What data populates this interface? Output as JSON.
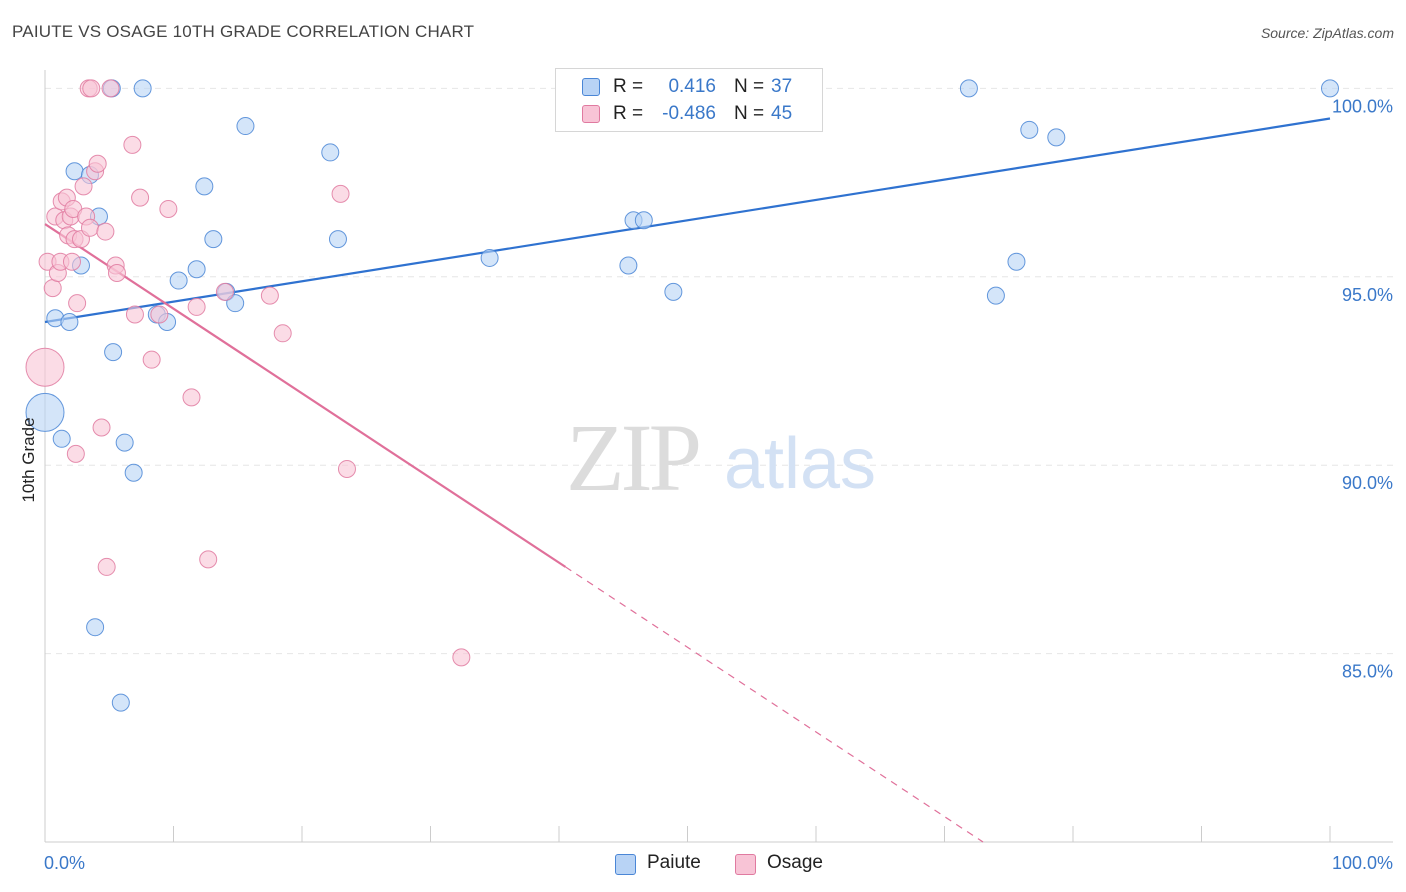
{
  "header": {
    "title": "PAIUTE VS OSAGE 10TH GRADE CORRELATION CHART",
    "source": "Source: ZipAtlas.com"
  },
  "watermark": {
    "zip": "ZIP",
    "atlas": "atlas"
  },
  "colors": {
    "paiute_fill": "#b8d3f5",
    "paiute_stroke": "#4a86d6",
    "paiute_line": "#2f72d0",
    "osage_fill": "#f8c4d6",
    "osage_stroke": "#e07aa0",
    "osage_line": "#e0709a",
    "axis_text": "#3a78c9",
    "grid": "#e6e6e6"
  },
  "legend": {
    "r_label": "R =",
    "n_label": "N =",
    "series": [
      {
        "name": "Paiute",
        "r": "0.416",
        "n": "37"
      },
      {
        "name": "Osage",
        "r": "-0.486",
        "n": "45"
      }
    ]
  },
  "chart_data": {
    "type": "scatter",
    "title": "PAIUTE VS OSAGE 10TH GRADE CORRELATION CHART",
    "xlabel": "",
    "ylabel": "10th Grade",
    "xlim": [
      0,
      100
    ],
    "ylim": [
      80.0,
      100.7
    ],
    "x_tick_labels": [
      "0.0%",
      "100.0%"
    ],
    "y_ticks": [
      {
        "value": 100,
        "label": "100.0%"
      },
      {
        "value": 95,
        "label": "95.0%"
      },
      {
        "value": 90,
        "label": "90.0%"
      },
      {
        "value": 85,
        "label": "85.0%"
      }
    ],
    "grid": true,
    "series": [
      {
        "name": "Paiute",
        "trend": {
          "x0": 0,
          "y0": 93.8,
          "x1": 100,
          "y1": 99.2,
          "solid_to": 100
        },
        "points": [
          {
            "x": 0.0,
            "y": 91.4,
            "big": true
          },
          {
            "x": 0.8,
            "y": 93.9
          },
          {
            "x": 1.3,
            "y": 90.7
          },
          {
            "x": 1.9,
            "y": 93.8
          },
          {
            "x": 2.3,
            "y": 97.8
          },
          {
            "x": 2.8,
            "y": 95.3
          },
          {
            "x": 3.5,
            "y": 97.7
          },
          {
            "x": 3.9,
            "y": 85.7
          },
          {
            "x": 4.2,
            "y": 96.6
          },
          {
            "x": 5.3,
            "y": 93.0
          },
          {
            "x": 5.9,
            "y": 83.7
          },
          {
            "x": 6.2,
            "y": 90.6
          },
          {
            "x": 6.9,
            "y": 89.8
          },
          {
            "x": 5.2,
            "y": 100.0
          },
          {
            "x": 7.6,
            "y": 100.0
          },
          {
            "x": 8.7,
            "y": 94.0
          },
          {
            "x": 9.5,
            "y": 93.8
          },
          {
            "x": 10.4,
            "y": 94.9
          },
          {
            "x": 11.8,
            "y": 95.2
          },
          {
            "x": 12.4,
            "y": 97.4
          },
          {
            "x": 13.1,
            "y": 96.0
          },
          {
            "x": 14.1,
            "y": 94.6
          },
          {
            "x": 14.8,
            "y": 94.3
          },
          {
            "x": 15.6,
            "y": 99.0
          },
          {
            "x": 22.2,
            "y": 98.3
          },
          {
            "x": 22.8,
            "y": 96.0
          },
          {
            "x": 34.6,
            "y": 95.5
          },
          {
            "x": 45.4,
            "y": 95.3
          },
          {
            "x": 45.8,
            "y": 96.5
          },
          {
            "x": 46.6,
            "y": 96.5
          },
          {
            "x": 48.9,
            "y": 94.6
          },
          {
            "x": 71.9,
            "y": 100.0
          },
          {
            "x": 74.0,
            "y": 94.5
          },
          {
            "x": 75.6,
            "y": 95.4
          },
          {
            "x": 76.6,
            "y": 98.9
          },
          {
            "x": 78.7,
            "y": 98.7
          },
          {
            "x": 100.0,
            "y": 100.0
          }
        ]
      },
      {
        "name": "Osage",
        "trend": {
          "x0": 0,
          "y0": 96.4,
          "x1": 73,
          "y1": 80.0,
          "solid_to": 40.5
        },
        "points": [
          {
            "x": 0.0,
            "y": 92.6,
            "big": true
          },
          {
            "x": 0.2,
            "y": 95.4
          },
          {
            "x": 0.6,
            "y": 94.7
          },
          {
            "x": 0.8,
            "y": 96.6
          },
          {
            "x": 1.0,
            "y": 95.1
          },
          {
            "x": 1.2,
            "y": 95.4
          },
          {
            "x": 1.3,
            "y": 97.0
          },
          {
            "x": 1.5,
            "y": 96.5
          },
          {
            "x": 1.7,
            "y": 97.1
          },
          {
            "x": 1.8,
            "y": 96.1
          },
          {
            "x": 2.0,
            "y": 96.6
          },
          {
            "x": 2.1,
            "y": 95.4
          },
          {
            "x": 2.2,
            "y": 96.8
          },
          {
            "x": 2.3,
            "y": 96.0
          },
          {
            "x": 2.5,
            "y": 94.3
          },
          {
            "x": 2.4,
            "y": 90.3
          },
          {
            "x": 2.8,
            "y": 96.0
          },
          {
            "x": 3.0,
            "y": 97.4
          },
          {
            "x": 3.2,
            "y": 96.6
          },
          {
            "x": 3.5,
            "y": 96.3
          },
          {
            "x": 3.9,
            "y": 97.8
          },
          {
            "x": 4.1,
            "y": 98.0
          },
          {
            "x": 4.4,
            "y": 91.0
          },
          {
            "x": 4.7,
            "y": 96.2
          },
          {
            "x": 4.8,
            "y": 87.3
          },
          {
            "x": 5.1,
            "y": 100.0
          },
          {
            "x": 5.5,
            "y": 95.3
          },
          {
            "x": 5.6,
            "y": 95.1
          },
          {
            "x": 3.4,
            "y": 100.0
          },
          {
            "x": 3.6,
            "y": 100.0
          },
          {
            "x": 6.8,
            "y": 98.5
          },
          {
            "x": 7.0,
            "y": 94.0
          },
          {
            "x": 7.4,
            "y": 97.1
          },
          {
            "x": 8.3,
            "y": 92.8
          },
          {
            "x": 8.9,
            "y": 94.0
          },
          {
            "x": 9.6,
            "y": 96.8
          },
          {
            "x": 11.4,
            "y": 91.8
          },
          {
            "x": 11.8,
            "y": 94.2
          },
          {
            "x": 12.7,
            "y": 87.5
          },
          {
            "x": 14.0,
            "y": 94.6
          },
          {
            "x": 17.5,
            "y": 94.5
          },
          {
            "x": 18.5,
            "y": 93.5
          },
          {
            "x": 23.0,
            "y": 97.2
          },
          {
            "x": 23.5,
            "y": 89.9
          },
          {
            "x": 32.4,
            "y": 84.9
          }
        ]
      }
    ]
  }
}
